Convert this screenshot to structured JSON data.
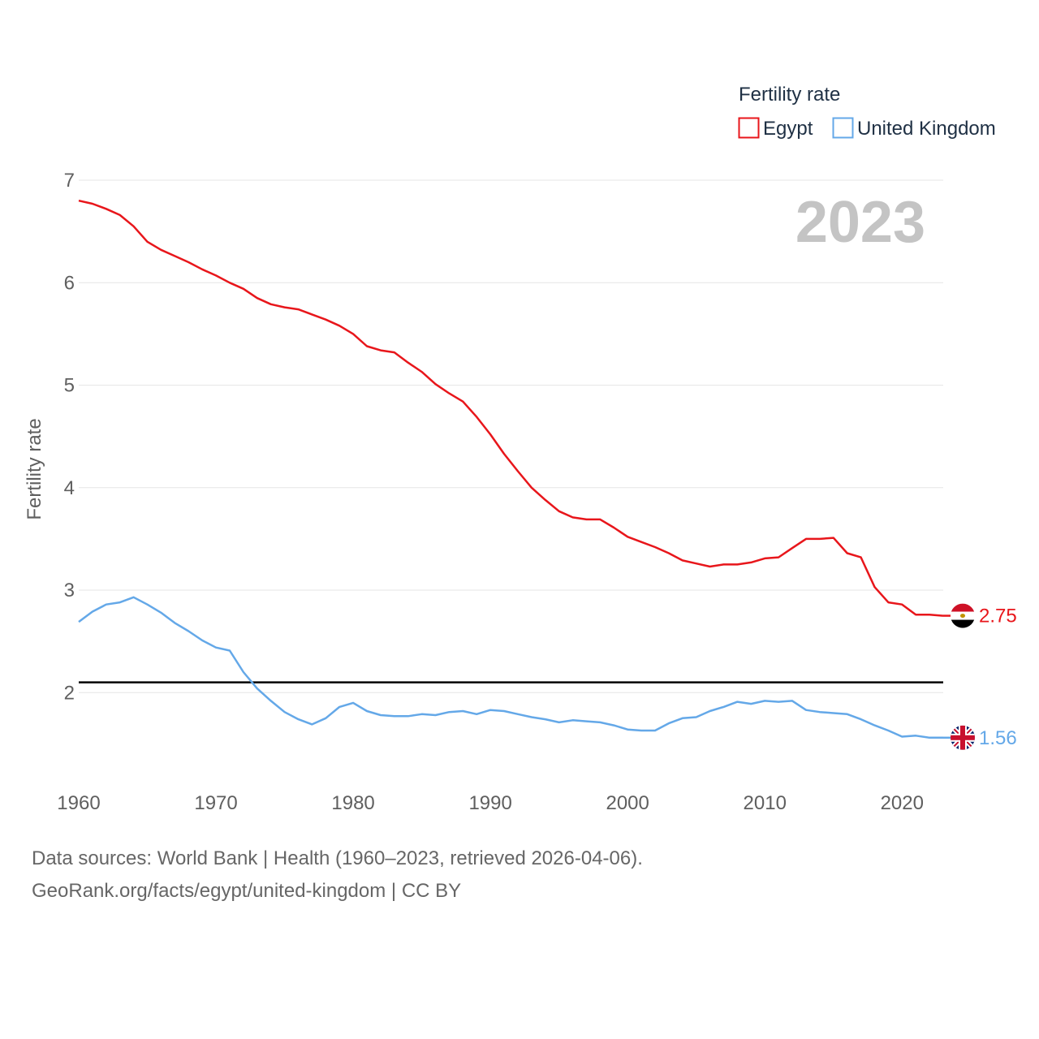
{
  "chart_data": {
    "type": "line",
    "year_label": "2023",
    "ylabel": "Fertility rate",
    "xlabel": "",
    "xlim": [
      1960,
      2023
    ],
    "ylim": [
      1.4,
      7
    ],
    "x_ticks": [
      1960,
      1970,
      1980,
      1990,
      2000,
      2010,
      2020
    ],
    "y_ticks": [
      2,
      3,
      4,
      5,
      6,
      7
    ],
    "reference_line": 2.1,
    "legend": {
      "title": "Fertility rate",
      "position": "top-right"
    },
    "x": [
      1960,
      1961,
      1962,
      1963,
      1964,
      1965,
      1966,
      1967,
      1968,
      1969,
      1970,
      1971,
      1972,
      1973,
      1974,
      1975,
      1976,
      1977,
      1978,
      1979,
      1980,
      1981,
      1982,
      1983,
      1984,
      1985,
      1986,
      1987,
      1988,
      1989,
      1990,
      1991,
      1992,
      1993,
      1994,
      1995,
      1996,
      1997,
      1998,
      1999,
      2000,
      2001,
      2002,
      2003,
      2004,
      2005,
      2006,
      2007,
      2008,
      2009,
      2010,
      2011,
      2012,
      2013,
      2014,
      2015,
      2016,
      2017,
      2018,
      2019,
      2020,
      2021,
      2022,
      2023
    ],
    "series": [
      {
        "name": "Egypt",
        "color": "#e8161b",
        "icon": "egypt-flag-icon",
        "end_label": "2.75",
        "values": [
          6.8,
          6.77,
          6.72,
          6.66,
          6.55,
          6.4,
          6.32,
          6.26,
          6.2,
          6.13,
          6.07,
          6.0,
          5.94,
          5.85,
          5.79,
          5.76,
          5.74,
          5.69,
          5.64,
          5.58,
          5.5,
          5.38,
          5.34,
          5.32,
          5.22,
          5.13,
          5.01,
          4.92,
          4.84,
          4.69,
          4.52,
          4.33,
          4.16,
          4.0,
          3.88,
          3.77,
          3.71,
          3.69,
          3.69,
          3.61,
          3.52,
          3.47,
          3.42,
          3.36,
          3.29,
          3.26,
          3.23,
          3.25,
          3.25,
          3.27,
          3.31,
          3.32,
          3.41,
          3.5,
          3.5,
          3.51,
          3.36,
          3.32,
          3.03,
          2.88,
          2.86,
          2.76,
          2.76,
          2.75
        ]
      },
      {
        "name": "United Kingdom",
        "color": "#64a8e8",
        "icon": "uk-flag-icon",
        "end_label": "1.56",
        "values": [
          2.69,
          2.79,
          2.86,
          2.88,
          2.93,
          2.86,
          2.78,
          2.68,
          2.6,
          2.51,
          2.44,
          2.41,
          2.2,
          2.04,
          1.92,
          1.81,
          1.74,
          1.69,
          1.75,
          1.86,
          1.9,
          1.82,
          1.78,
          1.77,
          1.77,
          1.79,
          1.78,
          1.81,
          1.82,
          1.79,
          1.83,
          1.82,
          1.79,
          1.76,
          1.74,
          1.71,
          1.73,
          1.72,
          1.71,
          1.68,
          1.64,
          1.63,
          1.63,
          1.7,
          1.75,
          1.76,
          1.82,
          1.86,
          1.91,
          1.89,
          1.92,
          1.91,
          1.92,
          1.83,
          1.81,
          1.8,
          1.79,
          1.74,
          1.68,
          1.63,
          1.57,
          1.58,
          1.56,
          1.56
        ]
      }
    ]
  },
  "source": {
    "line1": "Data sources: World Bank | Health (1960–2023, retrieved 2026-04-06).",
    "line2": "GeoRank.org/facts/egypt/united-kingdom | CC BY"
  }
}
